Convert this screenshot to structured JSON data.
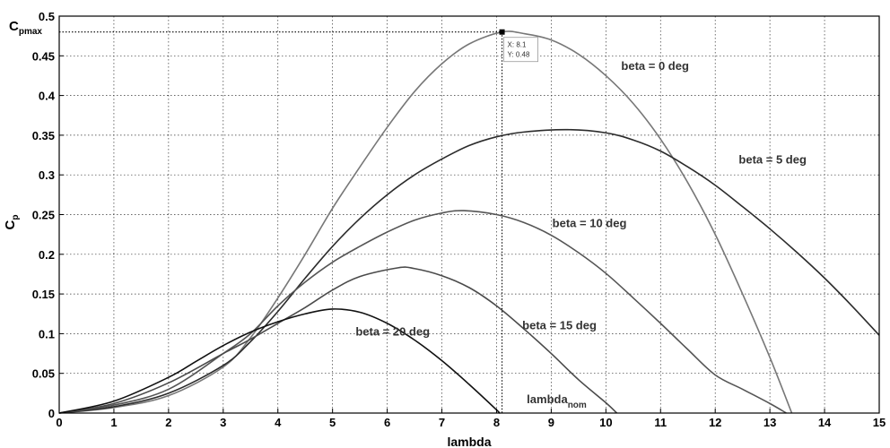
{
  "chart_data": {
    "type": "line",
    "title": "",
    "xlabel": "lambda",
    "ylabel": "C",
    "ylabel_sub": "p",
    "xlim": [
      0,
      15
    ],
    "ylim": [
      0,
      0.5
    ],
    "xticks": [
      0,
      1,
      2,
      3,
      4,
      5,
      6,
      7,
      8,
      9,
      10,
      11,
      12,
      13,
      14,
      15
    ],
    "yticks": [
      0,
      0.05,
      0.1,
      0.15,
      0.2,
      0.25,
      0.3,
      0.35,
      0.4,
      0.45,
      0.5
    ],
    "grid": true,
    "series": [
      {
        "name": "beta = 0 deg",
        "color": "#777777",
        "points": [
          [
            0,
            0
          ],
          [
            1,
            0.007
          ],
          [
            2,
            0.022
          ],
          [
            3,
            0.058
          ],
          [
            3.5,
            0.095
          ],
          [
            4,
            0.145
          ],
          [
            4.5,
            0.2
          ],
          [
            5,
            0.258
          ],
          [
            5.5,
            0.31
          ],
          [
            6,
            0.36
          ],
          [
            6.5,
            0.405
          ],
          [
            7,
            0.44
          ],
          [
            7.5,
            0.465
          ],
          [
            8.1,
            0.48
          ],
          [
            8.5,
            0.478
          ],
          [
            9,
            0.47
          ],
          [
            9.5,
            0.452
          ],
          [
            10,
            0.425
          ],
          [
            10.5,
            0.39
          ],
          [
            11,
            0.345
          ],
          [
            11.5,
            0.29
          ],
          [
            12,
            0.225
          ],
          [
            12.5,
            0.15
          ],
          [
            13,
            0.07
          ],
          [
            13.4,
            0
          ]
        ]
      },
      {
        "name": "beta = 5 deg",
        "color": "#2b2b2b",
        "points": [
          [
            0,
            0
          ],
          [
            1,
            0.008
          ],
          [
            2,
            0.025
          ],
          [
            3,
            0.06
          ],
          [
            3.5,
            0.09
          ],
          [
            4,
            0.128
          ],
          [
            4.5,
            0.17
          ],
          [
            5,
            0.21
          ],
          [
            5.5,
            0.245
          ],
          [
            6,
            0.275
          ],
          [
            6.5,
            0.3
          ],
          [
            7,
            0.32
          ],
          [
            7.5,
            0.337
          ],
          [
            8,
            0.348
          ],
          [
            8.5,
            0.354
          ],
          [
            9.3,
            0.357
          ],
          [
            10,
            0.353
          ],
          [
            10.5,
            0.344
          ],
          [
            11,
            0.33
          ],
          [
            11.5,
            0.31
          ],
          [
            12,
            0.287
          ],
          [
            12.5,
            0.26
          ],
          [
            13,
            0.232
          ],
          [
            13.5,
            0.202
          ],
          [
            14,
            0.17
          ],
          [
            14.5,
            0.135
          ],
          [
            15,
            0.098
          ]
        ]
      },
      {
        "name": "beta = 10 deg",
        "color": "#555555",
        "points": [
          [
            0,
            0
          ],
          [
            1,
            0.01
          ],
          [
            2,
            0.03
          ],
          [
            3,
            0.075
          ],
          [
            3.5,
            0.1
          ],
          [
            4,
            0.135
          ],
          [
            4.5,
            0.165
          ],
          [
            5,
            0.19
          ],
          [
            5.5,
            0.21
          ],
          [
            6,
            0.228
          ],
          [
            6.5,
            0.243
          ],
          [
            7,
            0.252
          ],
          [
            7.4,
            0.255
          ],
          [
            8,
            0.25
          ],
          [
            8.5,
            0.24
          ],
          [
            9,
            0.224
          ],
          [
            9.5,
            0.202
          ],
          [
            10,
            0.176
          ],
          [
            10.5,
            0.145
          ],
          [
            11,
            0.113
          ],
          [
            11.5,
            0.08
          ],
          [
            12,
            0.048
          ],
          [
            12.5,
            0.03
          ],
          [
            13,
            0.012
          ],
          [
            13.3,
            0
          ]
        ]
      },
      {
        "name": "beta = 15 deg",
        "color": "#4a4a4a",
        "points": [
          [
            0,
            0
          ],
          [
            1,
            0.012
          ],
          [
            2,
            0.038
          ],
          [
            3,
            0.075
          ],
          [
            3.5,
            0.093
          ],
          [
            4,
            0.113
          ],
          [
            4.5,
            0.133
          ],
          [
            5,
            0.155
          ],
          [
            5.5,
            0.172
          ],
          [
            6.2,
            0.183
          ],
          [
            6.5,
            0.182
          ],
          [
            7,
            0.173
          ],
          [
            7.5,
            0.158
          ],
          [
            8,
            0.135
          ],
          [
            8.5,
            0.106
          ],
          [
            9,
            0.075
          ],
          [
            9.5,
            0.042
          ],
          [
            10,
            0.013
          ],
          [
            10.2,
            0
          ]
        ]
      },
      {
        "name": "beta = 20 deg",
        "color": "#111111",
        "points": [
          [
            0,
            0
          ],
          [
            1,
            0.015
          ],
          [
            2,
            0.045
          ],
          [
            2.5,
            0.065
          ],
          [
            3,
            0.085
          ],
          [
            3.5,
            0.102
          ],
          [
            4,
            0.115
          ],
          [
            4.5,
            0.125
          ],
          [
            5,
            0.131
          ],
          [
            5.5,
            0.127
          ],
          [
            6,
            0.113
          ],
          [
            6.5,
            0.092
          ],
          [
            7,
            0.066
          ],
          [
            7.5,
            0.036
          ],
          [
            8,
            0.004
          ],
          [
            8.05,
            0
          ]
        ]
      }
    ],
    "annotations": [
      {
        "text": "beta = 0 deg",
        "x": 10.9,
        "y": 0.438
      },
      {
        "text": "beta = 5 deg",
        "x": 13.05,
        "y": 0.32
      },
      {
        "text": "beta = 10 deg",
        "x": 9.7,
        "y": 0.24
      },
      {
        "text": "beta = 15 deg",
        "x": 9.15,
        "y": 0.111
      },
      {
        "text": "beta = 20 deg",
        "x": 6.1,
        "y": 0.103
      },
      {
        "text": "lambda",
        "sub": "nom",
        "x": 9.1,
        "y": 0.018
      }
    ],
    "cp_max_label": "C",
    "cp_max_sub": "pmax",
    "marker": {
      "x": 8.1,
      "y": 0.48
    },
    "datatip": {
      "x_text": "X: 8.1",
      "y_text": "Y: 0.48"
    }
  }
}
